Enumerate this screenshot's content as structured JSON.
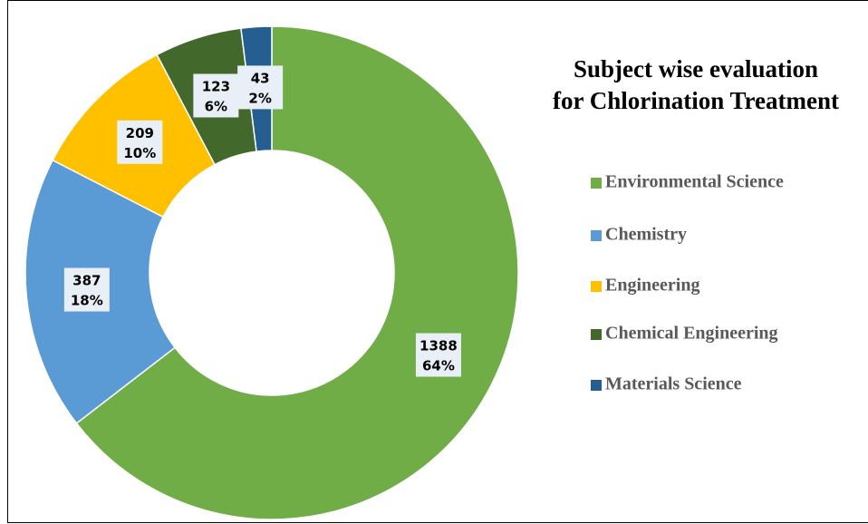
{
  "chart_data": {
    "type": "donut",
    "title": [
      "Subject wise evaluation",
      "for Chlorination Treatment"
    ],
    "categories": [
      "Environmental Science",
      "Chemistry",
      "Engineering",
      "Chemical Engineering",
      "Materials Science"
    ],
    "values": [
      1388,
      387,
      209,
      123,
      43
    ],
    "percentage_labels": [
      "64%",
      "18%",
      "10%",
      "6%",
      "2%"
    ],
    "colors": [
      "#70ad47",
      "#5b9bd5",
      "#ffc000",
      "#43682b",
      "#255e91"
    ],
    "legend": "right"
  }
}
